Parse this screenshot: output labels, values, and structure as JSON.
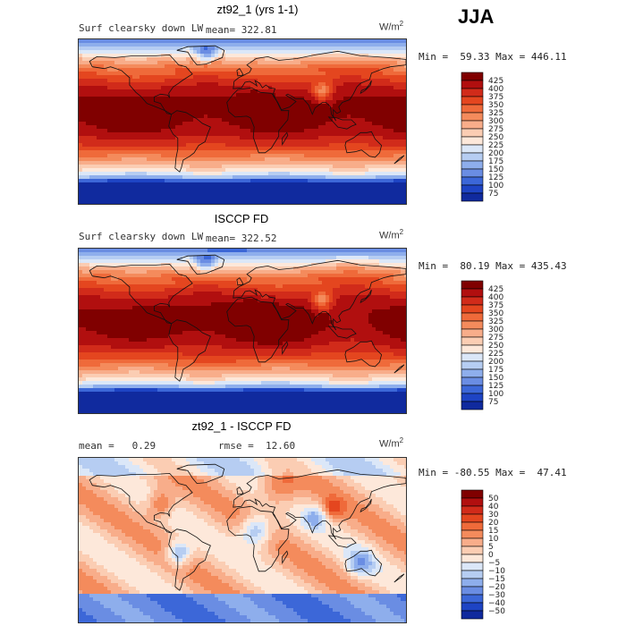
{
  "season": "JJA",
  "panels": [
    {
      "title": "zt92_1 (yrs 1-1)",
      "label_left": "Surf clearsky down LW",
      "mean_label": "mean= 322.81",
      "rmse_label": "",
      "units_base": "W/m",
      "units_exp": "2",
      "stats": "Min =  59.33 Max = 446.11",
      "kind": "abs"
    },
    {
      "title": "ISCCP FD",
      "label_left": "Surf clearsky down LW",
      "mean_label": "mean= 322.52",
      "rmse_label": "",
      "units_base": "W/m",
      "units_exp": "2",
      "stats": "Min =  80.19 Max = 435.43",
      "kind": "abs"
    },
    {
      "title": "zt92_1 - ISCCP FD",
      "label_left": "mean =   0.29",
      "mean_label": "",
      "rmse_label": "rmse =  12.60",
      "units_base": "W/m",
      "units_exp": "2",
      "stats": "Min = -80.55 Max =  47.41",
      "kind": "diff"
    }
  ],
  "colorbars": {
    "abs": {
      "labels": [
        "425",
        "400",
        "375",
        "350",
        "325",
        "300",
        "275",
        "250",
        "225",
        "200",
        "175",
        "150",
        "125",
        "100",
        "75"
      ],
      "colors": [
        "#800000",
        "#b10f0f",
        "#d12b1a",
        "#e4461f",
        "#ef6a3a",
        "#f48b5c",
        "#f8ad8a",
        "#fbcdb3",
        "#fde8da",
        "#dbe7f8",
        "#b6cdf2",
        "#8eaeec",
        "#6a8de3",
        "#3c67d8",
        "#1e44c4",
        "#102a9e"
      ]
    },
    "diff": {
      "labels": [
        "50",
        "40",
        "30",
        "20",
        "15",
        "10",
        "5",
        "0",
        "−5",
        "−10",
        "−15",
        "−20",
        "−30",
        "−40",
        "−50"
      ],
      "colors": [
        "#800000",
        "#b10f0f",
        "#d12b1a",
        "#e4461f",
        "#ef6a3a",
        "#f48b5c",
        "#f8ad8a",
        "#fbcdb3",
        "#fde8da",
        "#dbe7f8",
        "#b6cdf2",
        "#8eaeec",
        "#6a8de3",
        "#3c67d8",
        "#1e44c4",
        "#102a9e"
      ]
    }
  },
  "chart_data": [
    {
      "type": "heatmap",
      "title": "zt92_1 (yrs 1-1)",
      "variable": "Surf clearsky down LW",
      "units": "W/m2",
      "mean": 322.81,
      "min": 59.33,
      "max": 446.11,
      "contour_levels": [
        75,
        100,
        125,
        150,
        175,
        200,
        225,
        250,
        275,
        300,
        325,
        350,
        375,
        400,
        425
      ]
    },
    {
      "type": "heatmap",
      "title": "ISCCP FD",
      "variable": "Surf clearsky down LW",
      "units": "W/m2",
      "mean": 322.52,
      "min": 80.19,
      "max": 435.43,
      "contour_levels": [
        75,
        100,
        125,
        150,
        175,
        200,
        225,
        250,
        275,
        300,
        325,
        350,
        375,
        400,
        425
      ]
    },
    {
      "type": "heatmap",
      "title": "zt92_1 - ISCCP FD",
      "units": "W/m2",
      "mean": 0.29,
      "rmse": 12.6,
      "min": -80.55,
      "max": 47.41,
      "contour_levels": [
        -50,
        -40,
        -30,
        -20,
        -15,
        -10,
        -5,
        0,
        5,
        10,
        15,
        20,
        30,
        40,
        50
      ]
    }
  ]
}
